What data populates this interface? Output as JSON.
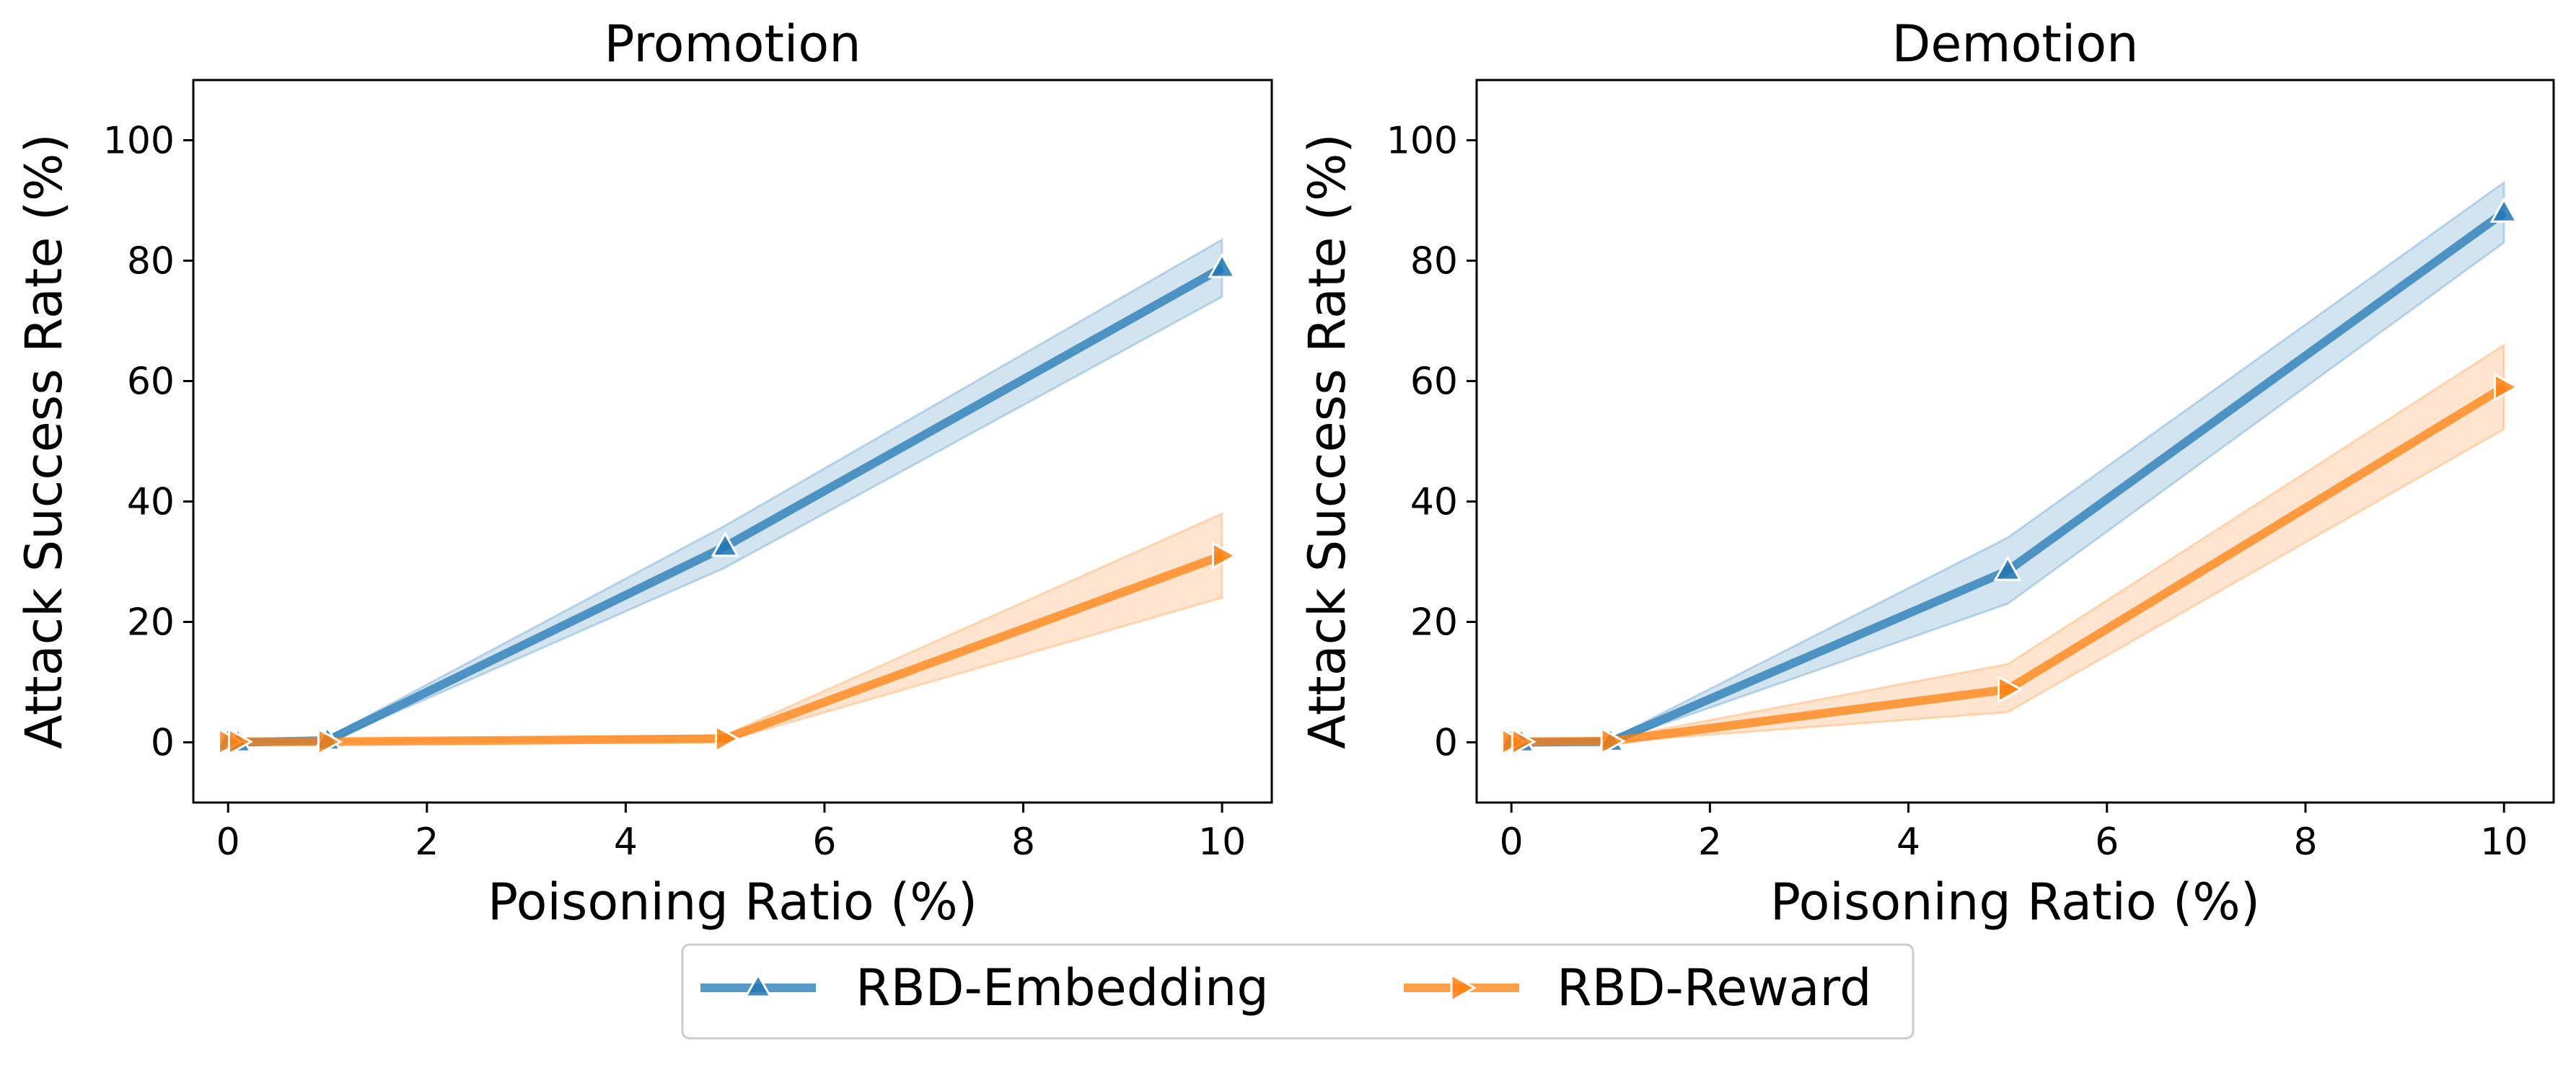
{
  "chart_data": [
    {
      "type": "line",
      "title": "Promotion",
      "xlabel": "Poisoning Ratio (%)",
      "ylabel": "Attack Success Rate (%)",
      "xlim": [
        -0.35,
        10.5
      ],
      "ylim": [
        -10,
        110
      ],
      "xticks": [
        0,
        2,
        4,
        6,
        8,
        10
      ],
      "yticks": [
        0,
        20,
        40,
        60,
        80,
        100
      ],
      "x": [
        0,
        0.1,
        1,
        5,
        10
      ],
      "series": [
        {
          "name": "RBD-Embedding",
          "marker": "triangle-up",
          "color": "#1f77b4",
          "values": [
            0.2,
            0,
            0.3,
            32.5,
            78.8
          ],
          "lower": [
            0,
            0,
            0,
            29,
            74
          ],
          "upper": [
            0.6,
            0.3,
            0.8,
            36,
            83.5
          ]
        },
        {
          "name": "RBD-Reward",
          "marker": "triangle-right",
          "color": "#ff7f0e",
          "values": [
            0.1,
            0.1,
            0.1,
            0.6,
            31
          ],
          "lower": [
            0,
            0,
            0,
            0.2,
            24
          ],
          "upper": [
            0.4,
            0.4,
            0.4,
            1.2,
            38
          ]
        }
      ]
    },
    {
      "type": "line",
      "title": "Demotion",
      "xlabel": "Poisoning Ratio (%)",
      "ylabel": "Attack Success Rate (%)",
      "xlim": [
        -0.35,
        10.5
      ],
      "ylim": [
        -10,
        110
      ],
      "xticks": [
        0,
        2,
        4,
        6,
        8,
        10
      ],
      "yticks": [
        0,
        20,
        40,
        60,
        80,
        100
      ],
      "x": [
        0,
        0.1,
        1,
        5,
        10
      ],
      "series": [
        {
          "name": "RBD-Embedding",
          "marker": "triangle-up",
          "color": "#1f77b4",
          "values": [
            0.1,
            0,
            0.1,
            28.5,
            88
          ],
          "lower": [
            0,
            0,
            0,
            23,
            83
          ],
          "upper": [
            0.4,
            0.3,
            0.5,
            34,
            93
          ]
        },
        {
          "name": "RBD-Reward",
          "marker": "triangle-right",
          "color": "#ff7f0e",
          "values": [
            0.1,
            0.1,
            0.2,
            8.8,
            59
          ],
          "lower": [
            0,
            0,
            0,
            5,
            52
          ],
          "upper": [
            0.4,
            0.4,
            0.6,
            13,
            66
          ]
        }
      ]
    }
  ],
  "legend": {
    "items": [
      {
        "label": "RBD-Embedding",
        "color": "#1f77b4",
        "marker": "triangle-up"
      },
      {
        "label": "RBD-Reward",
        "color": "#ff7f0e",
        "marker": "triangle-right"
      }
    ]
  }
}
